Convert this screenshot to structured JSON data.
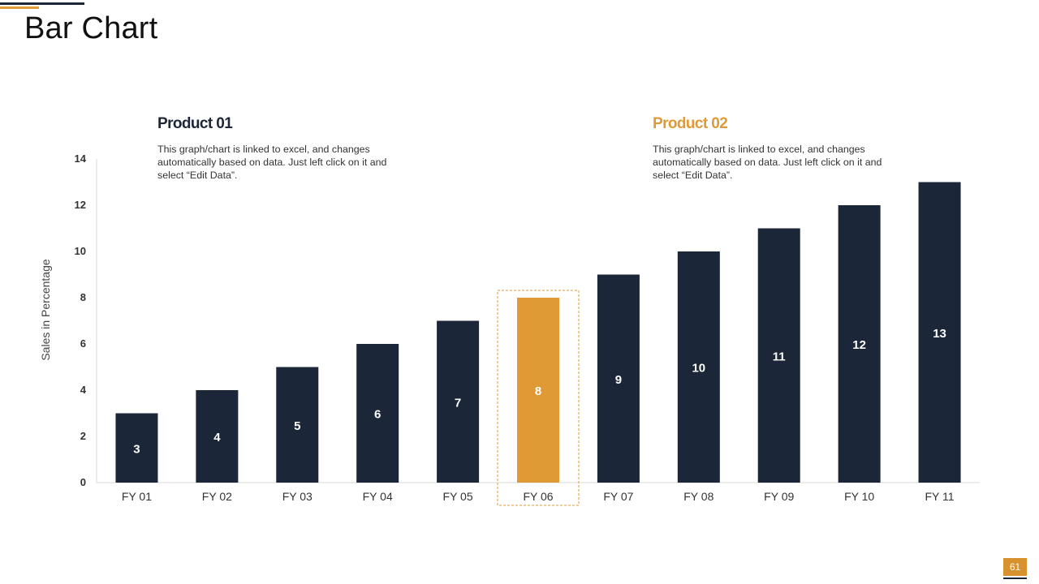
{
  "slide": {
    "title": "Bar Chart",
    "page_number": "61"
  },
  "products": [
    {
      "title": "Product 01",
      "description": "This graph/chart is linked to excel, and changes automatically based on data. Just left click on it and select “Edit Data”."
    },
    {
      "title": "Product 02",
      "description": "This graph/chart is linked to excel, and changes automatically based on data. Just left click on it and select “Edit Data”."
    }
  ],
  "chart_data": {
    "type": "bar",
    "title": "Bar Chart",
    "categories": [
      "FY 01",
      "FY 02",
      "FY 03",
      "FY 04",
      "FY 05",
      "FY 06",
      "FY 07",
      "FY 08",
      "FY 09",
      "FY 10",
      "FY 11"
    ],
    "values": [
      3,
      4,
      5,
      6,
      7,
      8,
      9,
      10,
      11,
      12,
      13
    ],
    "highlight": "FY 06",
    "xlabel": "",
    "ylabel": "Sales in Percentage",
    "ylim": [
      0,
      14
    ],
    "yticks": [
      0,
      2,
      4,
      6,
      8,
      10,
      12,
      14
    ],
    "grid": false,
    "data_labels": true,
    "colors": {
      "bar": "#1b2638",
      "highlight": "#e09a35",
      "label": "#ffffff"
    }
  }
}
